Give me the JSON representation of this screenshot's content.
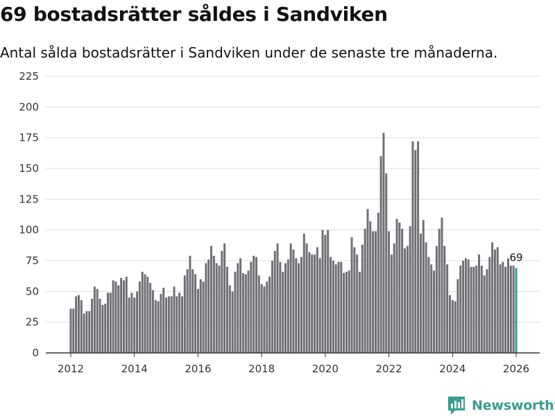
{
  "title": "69 bostadsrätter såldes i Sandviken",
  "subtitle": "Antal sålda bostadsrätter i Sandviken under de senaste tre månaderna.",
  "brand": "Newsworthy",
  "colors": {
    "bar": "#6f6e75",
    "highlight": "#2a9d8f",
    "grid": "#dddddd",
    "axis": "#333333",
    "brand": "#3a9b90"
  },
  "chart_data": {
    "type": "bar",
    "title": "69 bostadsrätter såldes i Sandviken",
    "subtitle": "Antal sålda bostadsrätter i Sandviken under de senaste tre månaderna.",
    "xlabel": "",
    "ylabel": "",
    "ylim": [
      0,
      225
    ],
    "yticks": [
      0,
      25,
      50,
      75,
      100,
      125,
      150,
      175,
      200,
      225
    ],
    "xticks": [
      2012,
      2014,
      2016,
      2018,
      2020,
      2022,
      2024,
      2026
    ],
    "x_start": "2012-01",
    "grid": true,
    "highlight_label": "69",
    "values": [
      36,
      36,
      46,
      47,
      43,
      32,
      34,
      34,
      44,
      54,
      52,
      44,
      39,
      40,
      49,
      49,
      59,
      58,
      55,
      61,
      59,
      62,
      45,
      49,
      45,
      50,
      58,
      66,
      64,
      62,
      57,
      51,
      43,
      42,
      48,
      53,
      45,
      46,
      46,
      54,
      46,
      49,
      46,
      63,
      68,
      79,
      68,
      64,
      52,
      60,
      58,
      73,
      76,
      87,
      79,
      73,
      71,
      83,
      89,
      70,
      55,
      50,
      66,
      73,
      77,
      65,
      64,
      67,
      74,
      79,
      78,
      63,
      56,
      54,
      58,
      62,
      75,
      83,
      89,
      74,
      66,
      73,
      76,
      89,
      84,
      77,
      73,
      78,
      97,
      89,
      82,
      80,
      80,
      86,
      77,
      100,
      96,
      100,
      78,
      75,
      72,
      74,
      74,
      65,
      66,
      67,
      94,
      86,
      80,
      66,
      88,
      101,
      117,
      107,
      99,
      99,
      114,
      160,
      179,
      146,
      99,
      80,
      89,
      109,
      106,
      101,
      85,
      87,
      103,
      172,
      165,
      172,
      97,
      108,
      90,
      78,
      72,
      67,
      87,
      101,
      110,
      87,
      72,
      47,
      43,
      42,
      60,
      71,
      75,
      77,
      76,
      70,
      70,
      71,
      80,
      71,
      63,
      68,
      78,
      90,
      84,
      86,
      72,
      74,
      70,
      77,
      71,
      71,
      69
    ]
  }
}
